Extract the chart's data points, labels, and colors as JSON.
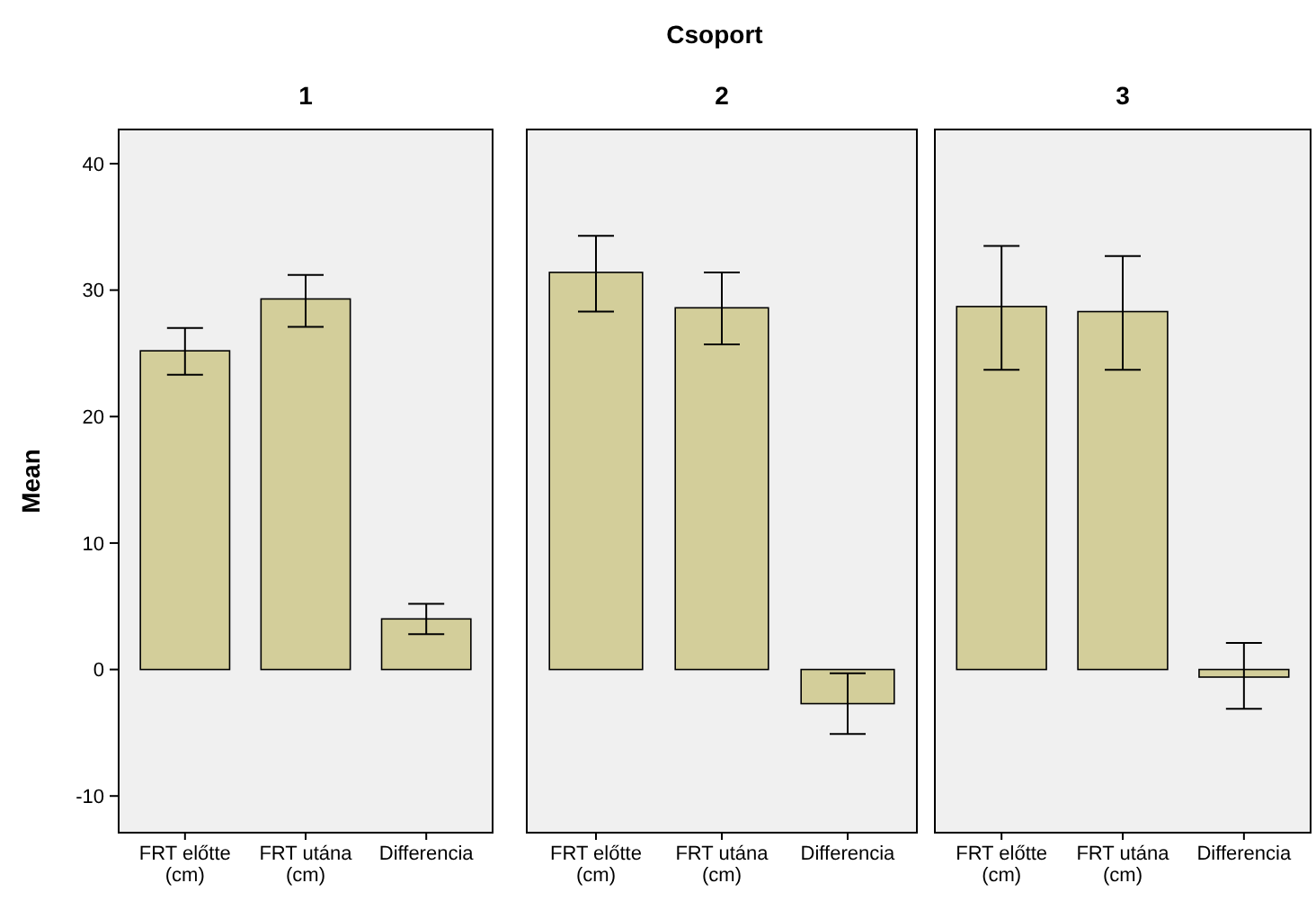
{
  "chart_data": [
    {
      "type": "bar",
      "title": "1",
      "ylabel": "Mean",
      "annotations": [
        "Csoport"
      ],
      "categories": [
        "FRT előtte (cm)",
        "FRT utána (cm)",
        "Differencia"
      ],
      "values": [
        25.2,
        29.3,
        4.0
      ],
      "errors": [
        [
          23.3,
          27.0
        ],
        [
          27.1,
          31.2
        ],
        [
          2.8,
          5.2
        ]
      ],
      "color": "#d3ce9a",
      "ylim": [
        -12.9,
        42.7
      ],
      "yticks": [
        -10,
        0,
        10,
        20,
        30,
        40
      ]
    },
    {
      "type": "bar",
      "title": "2",
      "categories": [
        "FRT előtte (cm)",
        "FRT utána (cm)",
        "Differencia"
      ],
      "values": [
        31.4,
        28.6,
        -2.7
      ],
      "errors": [
        [
          28.3,
          34.3
        ],
        [
          25.7,
          31.4
        ],
        [
          -5.1,
          -0.3
        ]
      ],
      "color": "#d3ce9a",
      "ylim": [
        -12.9,
        42.7
      ],
      "tick_labels": "x"
    },
    {
      "type": "bar",
      "title": "3",
      "categories": [
        "FRT előtte (cm)",
        "FRT utána (cm)",
        "Differencia"
      ],
      "values": [
        28.7,
        28.3,
        -0.6
      ],
      "errors": [
        [
          23.7,
          33.5
        ],
        [
          23.7,
          32.7
        ],
        [
          -3.1,
          2.1
        ]
      ],
      "color": "#d3ce9a",
      "ylim": [
        -12.9,
        42.7
      ],
      "tick_labels": "x"
    }
  ]
}
